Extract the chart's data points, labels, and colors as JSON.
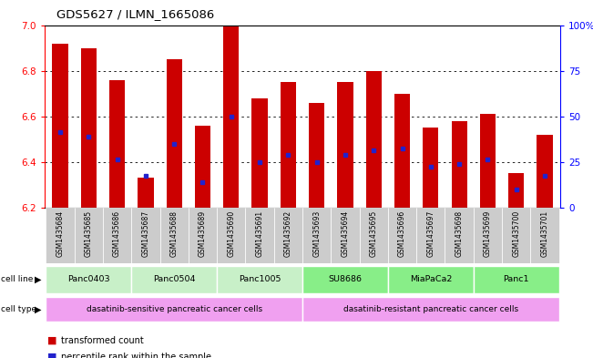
{
  "title": "GDS5627 / ILMN_1665086",
  "samples": [
    "GSM1435684",
    "GSM1435685",
    "GSM1435686",
    "GSM1435687",
    "GSM1435688",
    "GSM1435689",
    "GSM1435690",
    "GSM1435691",
    "GSM1435692",
    "GSM1435693",
    "GSM1435694",
    "GSM1435695",
    "GSM1435696",
    "GSM1435697",
    "GSM1435698",
    "GSM1435699",
    "GSM1435700",
    "GSM1435701"
  ],
  "bar_values": [
    6.92,
    6.9,
    6.76,
    6.33,
    6.85,
    6.56,
    7.0,
    6.68,
    6.75,
    6.66,
    6.75,
    6.8,
    6.7,
    6.55,
    6.58,
    6.61,
    6.35,
    6.52
  ],
  "percentile_values": [
    6.53,
    6.51,
    6.41,
    6.34,
    6.48,
    6.31,
    6.6,
    6.4,
    6.43,
    6.4,
    6.43,
    6.45,
    6.46,
    6.38,
    6.39,
    6.41,
    6.28,
    6.34
  ],
  "ymin": 6.2,
  "ymax": 7.0,
  "bar_color": "#cc0000",
  "dot_color": "#2222cc",
  "background_color": "#ffffff",
  "cell_lines": [
    {
      "label": "Panc0403",
      "start": 0,
      "end": 2,
      "color": "#c8f0c8"
    },
    {
      "label": "Panc0504",
      "start": 3,
      "end": 5,
      "color": "#c8f0c8"
    },
    {
      "label": "Panc1005",
      "start": 6,
      "end": 8,
      "color": "#c8f0c8"
    },
    {
      "label": "SU8686",
      "start": 9,
      "end": 11,
      "color": "#88ee88"
    },
    {
      "label": "MiaPaCa2",
      "start": 12,
      "end": 14,
      "color": "#88ee88"
    },
    {
      "label": "Panc1",
      "start": 15,
      "end": 17,
      "color": "#88ee88"
    }
  ],
  "cell_types": [
    {
      "label": "dasatinib-sensitive pancreatic cancer cells",
      "start": 0,
      "end": 8,
      "color": "#f0a0f0"
    },
    {
      "label": "dasatinib-resistant pancreatic cancer cells",
      "start": 9,
      "end": 17,
      "color": "#f0a0f0"
    }
  ],
  "grid_values": [
    6.4,
    6.6,
    6.8
  ],
  "yticks_left": [
    6.2,
    6.4,
    6.6,
    6.8,
    7.0
  ],
  "right_axis_ticks": [
    0,
    25,
    50,
    75,
    100
  ],
  "right_axis_labels": [
    "0",
    "25",
    "50",
    "75",
    "100%"
  ]
}
